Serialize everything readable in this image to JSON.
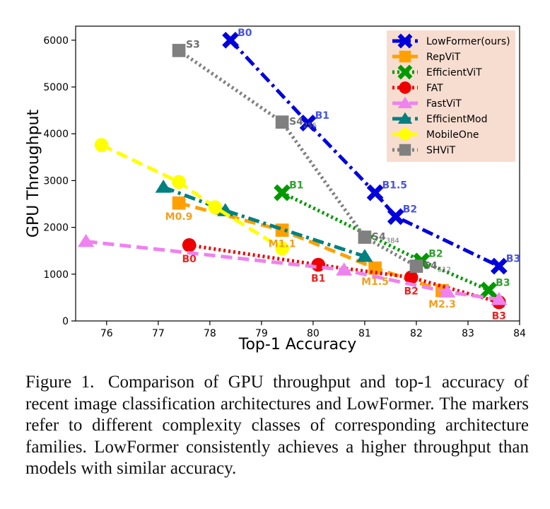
{
  "chart_data": {
    "type": "line",
    "xlabel": "Top-1 Accuracy",
    "ylabel": "GPU Throughput",
    "xlim": [
      75.4,
      84
    ],
    "ylim": [
      0,
      6300
    ],
    "xticks": [
      76,
      77,
      78,
      79,
      80,
      81,
      82,
      83,
      84
    ],
    "yticks": [
      0,
      1000,
      2000,
      3000,
      4000,
      5000,
      6000
    ],
    "legend_position": "top-right",
    "series": [
      {
        "name": "LowFormer(ours)",
        "color": "#0000dd",
        "label_color": "#4a55dd",
        "marker": "x",
        "dash": "dashdot",
        "label_pos": "right",
        "points": [
          {
            "x": 78.4,
            "y": 6000,
            "label": "B0"
          },
          {
            "x": 79.9,
            "y": 4230,
            "label": "B1"
          },
          {
            "x": 81.2,
            "y": 2740,
            "label": "B1.5"
          },
          {
            "x": 81.6,
            "y": 2230,
            "label": "B2"
          },
          {
            "x": 83.6,
            "y": 1170,
            "label": "B3"
          }
        ]
      },
      {
        "name": "RepViT",
        "color": "#ffa000",
        "label_color": "#f0a020",
        "marker": "square",
        "dash": "dash",
        "label_pos": "below",
        "points": [
          {
            "x": 77.4,
            "y": 2520,
            "label": "M0.9"
          },
          {
            "x": 79.4,
            "y": 1940,
            "label": "M1.1"
          },
          {
            "x": 81.2,
            "y": 1130,
            "label": "M1.5"
          },
          {
            "x": 82.5,
            "y": 650,
            "label": "M2.3"
          }
        ]
      },
      {
        "name": "EfficientViT",
        "color": "#009900",
        "label_color": "#33a033",
        "marker": "x",
        "dash": "dot",
        "label_pos": "right",
        "points": [
          {
            "x": 79.4,
            "y": 2740,
            "label": "B1"
          },
          {
            "x": 82.1,
            "y": 1280,
            "label": "B2"
          },
          {
            "x": 83.4,
            "y": 660,
            "label": "B3"
          }
        ]
      },
      {
        "name": "FAT",
        "color": "#ee0000",
        "label_color": "#ee2222",
        "marker": "circle",
        "dash": "dot",
        "label_pos": "below",
        "points": [
          {
            "x": 77.6,
            "y": 1620,
            "label": "B0"
          },
          {
            "x": 80.1,
            "y": 1200,
            "label": "B1"
          },
          {
            "x": 81.9,
            "y": 930,
            "label": "B2"
          },
          {
            "x": 83.6,
            "y": 400,
            "label": "B3"
          }
        ]
      },
      {
        "name": "FastViT",
        "color": "#ee82ee",
        "marker": "triangle",
        "dash": "dash",
        "points": [
          {
            "x": 75.6,
            "y": 1700
          },
          {
            "x": 80.6,
            "y": 1090
          },
          {
            "x": 82.6,
            "y": 620
          },
          {
            "x": 83.6,
            "y": 460
          }
        ]
      },
      {
        "name": "EfficientMod",
        "color": "#008080",
        "marker": "triangle",
        "dash": "dashdot",
        "points": [
          {
            "x": 77.1,
            "y": 2860
          },
          {
            "x": 78.3,
            "y": 2360
          },
          {
            "x": 81.0,
            "y": 1380
          }
        ]
      },
      {
        "name": "MobileOne",
        "color": "#ffff00",
        "marker": "circle",
        "dash": "dash",
        "points": [
          {
            "x": 75.9,
            "y": 3760
          },
          {
            "x": 77.4,
            "y": 2970
          },
          {
            "x": 78.1,
            "y": 2430
          },
          {
            "x": 79.4,
            "y": 1550
          }
        ]
      },
      {
        "name": "SHViT",
        "color": "#808080",
        "label_color": "#707070",
        "marker": "square",
        "dash": "dot",
        "label_pos": "left",
        "points": [
          {
            "x": 77.4,
            "y": 5780,
            "label": "S3"
          },
          {
            "x": 79.4,
            "y": 4250,
            "label": "S4",
            "sub": "256"
          },
          {
            "x": 81.0,
            "y": 1790,
            "label": "S4",
            "sub": "384"
          },
          {
            "x": 82.0,
            "y": 1170,
            "label": "S4",
            "sub": "512"
          }
        ]
      }
    ]
  },
  "caption": {
    "label": "Figure 1.",
    "text": "Comparison of GPU throughput and top-1 accuracy of recent image classification architectures and LowFormer. The markers refer to different complexity classes of corresponding architecture families. LowFormer consistently achieves a higher throughput than models with similar accuracy."
  }
}
